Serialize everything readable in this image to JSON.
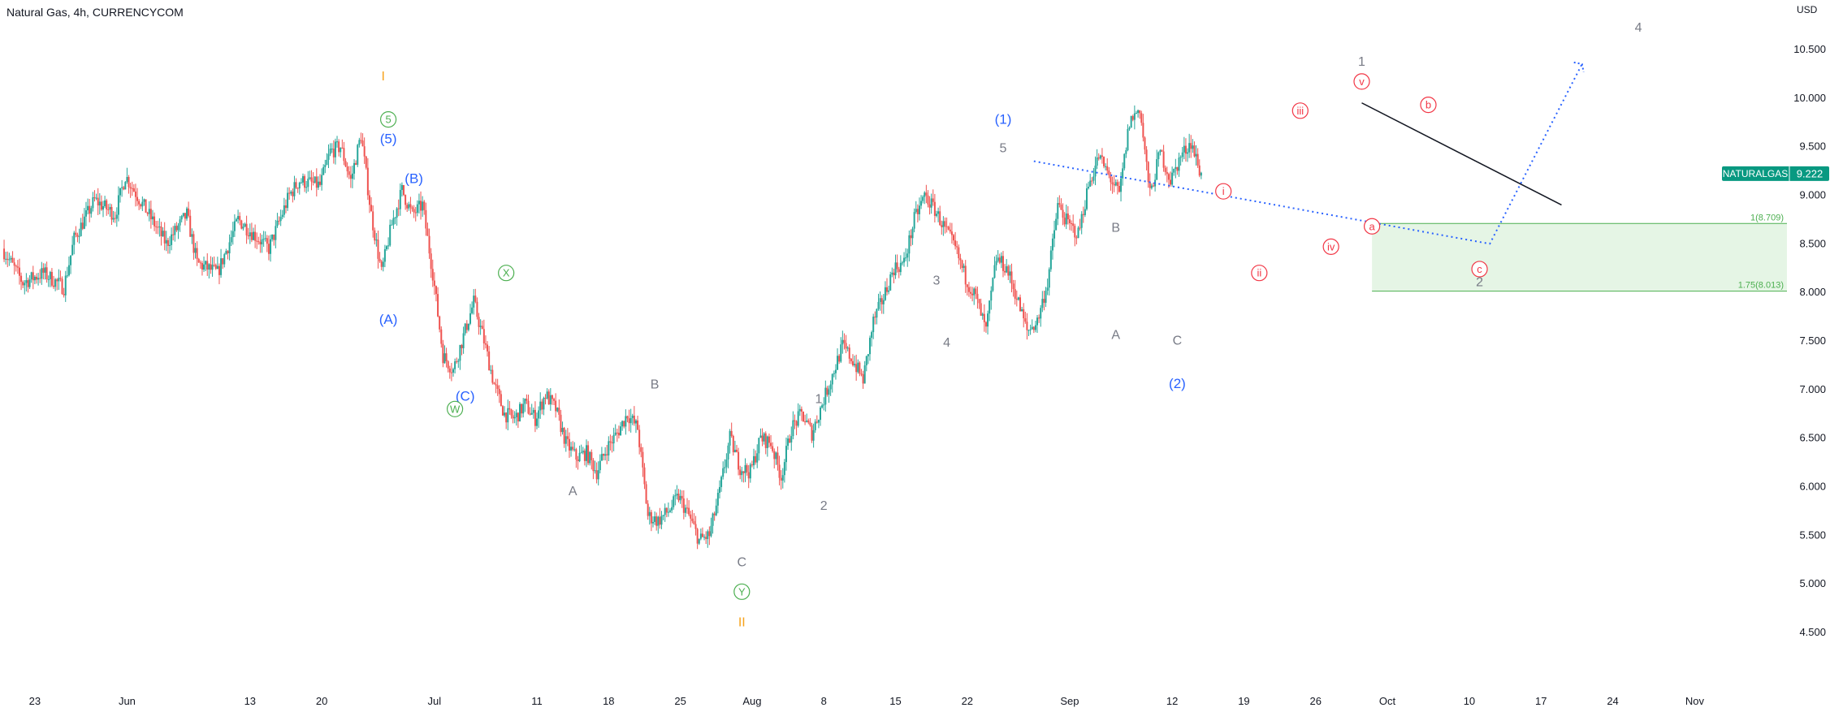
{
  "header": {
    "title": "Natural Gas, 4h, CURRENCYCOM"
  },
  "colors": {
    "up": "#26a69a",
    "down": "#ef5350",
    "blue": "#2962ff",
    "orange": "#f7a21b",
    "green": "#4caf50",
    "red": "#f23645",
    "gray": "#787b86",
    "zone_fill": "#e5f5e5",
    "zone_line": "#4caf50",
    "price_tag": "#089981"
  },
  "chart_data": {
    "type": "candlestick",
    "symbol": "NATURALGAS",
    "last_price": "9.222",
    "currency": "USD",
    "y_range": [
      4.2,
      10.8
    ],
    "y_ticks": [
      "10.500",
      "10.000",
      "9.500",
      "9.000",
      "8.500",
      "8.000",
      "7.500",
      "7.000",
      "6.500",
      "6.000",
      "5.500",
      "5.000",
      "4.500"
    ],
    "x_ticks": [
      "23",
      "Jun",
      "13",
      "20",
      "Jul",
      "11",
      "18",
      "25",
      "Aug",
      "8",
      "15",
      "22",
      "Sep",
      "12",
      "19",
      "26",
      "Oct",
      "10",
      "17",
      "24",
      "Nov"
    ],
    "x_tick_days": [
      -8,
      1,
      13,
      20,
      31,
      41,
      48,
      55,
      62,
      69,
      76,
      83,
      93,
      103,
      110,
      117,
      124,
      132,
      139,
      146,
      154
    ],
    "x_range_days": [
      -11.4,
      163
    ],
    "last_day": 89.5,
    "path": [
      [
        -11,
        8.45
      ],
      [
        -9,
        8.1
      ],
      [
        -7,
        8.2
      ],
      [
        -5,
        8.05
      ],
      [
        -4,
        8.55
      ],
      [
        -2,
        8.95
      ],
      [
        0,
        8.8
      ],
      [
        1,
        9.2
      ],
      [
        3,
        8.85
      ],
      [
        5,
        8.5
      ],
      [
        7,
        8.8
      ],
      [
        8,
        8.3
      ],
      [
        10,
        8.2
      ],
      [
        12,
        8.75
      ],
      [
        14,
        8.55
      ],
      [
        15,
        8.45
      ],
      [
        17,
        9.0
      ],
      [
        18,
        9.15
      ],
      [
        20,
        9.1
      ],
      [
        21,
        9.45
      ],
      [
        22,
        9.5
      ],
      [
        23,
        9.15
      ],
      [
        24,
        9.62
      ],
      [
        25,
        8.8
      ],
      [
        26,
        8.2
      ],
      [
        27,
        8.7
      ],
      [
        28,
        9.05
      ],
      [
        29,
        8.8
      ],
      [
        30,
        8.9
      ],
      [
        31,
        8.2
      ],
      [
        32,
        7.35
      ],
      [
        33,
        7.2
      ],
      [
        34,
        7.55
      ],
      [
        35,
        7.9
      ],
      [
        36,
        7.5
      ],
      [
        37,
        7.05
      ],
      [
        38,
        6.75
      ],
      [
        39,
        6.7
      ],
      [
        40,
        6.85
      ],
      [
        41,
        6.7
      ],
      [
        42,
        6.95
      ],
      [
        43,
        6.8
      ],
      [
        44,
        6.45
      ],
      [
        45,
        6.3
      ],
      [
        46,
        6.35
      ],
      [
        47,
        6.15
      ],
      [
        48,
        6.4
      ],
      [
        49,
        6.55
      ],
      [
        50,
        6.75
      ],
      [
        51,
        6.6
      ],
      [
        52,
        5.7
      ],
      [
        53,
        5.65
      ],
      [
        54,
        5.75
      ],
      [
        55,
        5.9
      ],
      [
        56,
        5.7
      ],
      [
        57,
        5.45
      ],
      [
        58,
        5.5
      ],
      [
        59,
        5.95
      ],
      [
        60,
        6.5
      ],
      [
        61,
        6.2
      ],
      [
        62,
        6.15
      ],
      [
        63,
        6.5
      ],
      [
        64,
        6.45
      ],
      [
        65,
        6.1
      ],
      [
        66,
        6.6
      ],
      [
        67,
        6.75
      ],
      [
        68,
        6.55
      ],
      [
        69,
        6.85
      ],
      [
        70,
        7.15
      ],
      [
        71,
        7.45
      ],
      [
        72,
        7.3
      ],
      [
        73,
        7.1
      ],
      [
        74,
        7.7
      ],
      [
        75,
        7.95
      ],
      [
        76,
        8.25
      ],
      [
        77,
        8.3
      ],
      [
        78,
        8.75
      ],
      [
        79,
        9.0
      ],
      [
        80,
        8.85
      ],
      [
        81,
        8.65
      ],
      [
        82,
        8.45
      ],
      [
        83,
        8.15
      ],
      [
        84,
        7.95
      ],
      [
        85,
        7.6
      ],
      [
        86,
        8.35
      ],
      [
        87,
        8.25
      ],
      [
        88,
        7.95
      ],
      [
        89,
        7.6
      ],
      [
        90,
        7.7
      ],
      [
        91,
        8.1
      ],
      [
        92,
        8.9
      ],
      [
        93,
        8.7
      ],
      [
        94,
        8.6
      ],
      [
        95,
        9.1
      ],
      [
        96,
        9.4
      ],
      [
        97,
        9.2
      ],
      [
        98,
        9.0
      ],
      [
        99,
        9.75
      ],
      [
        100,
        9.9
      ],
      [
        101,
        9.0
      ],
      [
        102,
        9.45
      ],
      [
        103,
        9.15
      ],
      [
        104,
        9.4
      ],
      [
        105,
        9.55
      ],
      [
        106,
        9.2
      ]
    ],
    "wave_labels": [
      {
        "t": "I",
        "d": 26,
        "p": 10.22,
        "c": "orange",
        "s": "plain"
      },
      {
        "t": "5",
        "d": 26.5,
        "p": 9.78,
        "c": "green",
        "s": "circle"
      },
      {
        "t": "(5)",
        "d": 26.5,
        "p": 9.58,
        "c": "blue",
        "s": "plain"
      },
      {
        "t": "(B)",
        "d": 29,
        "p": 9.17,
        "c": "blue",
        "s": "plain"
      },
      {
        "t": "(A)",
        "d": 26.5,
        "p": 7.72,
        "c": "blue",
        "s": "plain"
      },
      {
        "t": "X",
        "d": 38,
        "p": 8.2,
        "c": "green",
        "s": "circle"
      },
      {
        "t": "(C)",
        "d": 34,
        "p": 6.93,
        "c": "blue",
        "s": "plain"
      },
      {
        "t": "W",
        "d": 33,
        "p": 6.8,
        "c": "green",
        "s": "circle"
      },
      {
        "t": "B",
        "d": 52.5,
        "p": 7.05,
        "c": "gray",
        "s": "plain"
      },
      {
        "t": "A",
        "d": 44.5,
        "p": 5.95,
        "c": "gray",
        "s": "plain"
      },
      {
        "t": "C",
        "d": 61,
        "p": 5.22,
        "c": "gray",
        "s": "plain"
      },
      {
        "t": "Y",
        "d": 61,
        "p": 4.92,
        "c": "green",
        "s": "circle"
      },
      {
        "t": "II",
        "d": 61,
        "p": 4.6,
        "c": "orange",
        "s": "plain"
      },
      {
        "t": "1",
        "d": 68.5,
        "p": 6.9,
        "c": "gray",
        "s": "plain"
      },
      {
        "t": "2",
        "d": 69,
        "p": 5.8,
        "c": "gray",
        "s": "plain"
      },
      {
        "t": "3",
        "d": 80,
        "p": 8.12,
        "c": "gray",
        "s": "plain"
      },
      {
        "t": "4",
        "d": 81,
        "p": 7.48,
        "c": "gray",
        "s": "plain"
      },
      {
        "t": "(1)",
        "d": 86.5,
        "p": 9.78,
        "c": "blue",
        "s": "plain"
      },
      {
        "t": "5",
        "d": 86.5,
        "p": 9.48,
        "c": "gray",
        "s": "plain"
      },
      {
        "t": "B",
        "d": 97.5,
        "p": 8.66,
        "c": "gray",
        "s": "plain"
      },
      {
        "t": "A",
        "d": 97.5,
        "p": 7.56,
        "c": "gray",
        "s": "plain"
      },
      {
        "t": "C",
        "d": 103.5,
        "p": 7.5,
        "c": "gray",
        "s": "plain"
      },
      {
        "t": "(2)",
        "d": 103.5,
        "p": 7.06,
        "c": "blue",
        "s": "plain"
      },
      {
        "t": "i",
        "d": 108,
        "p": 9.04,
        "c": "red",
        "s": "circle"
      },
      {
        "t": "ii",
        "d": 111.5,
        "p": 8.2,
        "c": "red",
        "s": "circle"
      },
      {
        "t": "iii",
        "d": 115.5,
        "p": 9.87,
        "c": "red",
        "s": "circle"
      },
      {
        "t": "iv",
        "d": 118.5,
        "p": 8.47,
        "c": "red",
        "s": "circle"
      },
      {
        "t": "1",
        "d": 121.5,
        "p": 10.37,
        "c": "gray",
        "s": "plain"
      },
      {
        "t": "v",
        "d": 121.5,
        "p": 10.17,
        "c": "red",
        "s": "circle"
      },
      {
        "t": "b",
        "d": 128,
        "p": 9.93,
        "c": "red",
        "s": "circle"
      },
      {
        "t": "a",
        "d": 122.5,
        "p": 8.68,
        "c": "red",
        "s": "circle"
      },
      {
        "t": "c",
        "d": 133,
        "p": 8.24,
        "c": "red",
        "s": "circle"
      },
      {
        "t": "2",
        "d": 133,
        "p": 8.1,
        "c": "gray",
        "s": "plain"
      },
      {
        "t": "4",
        "d": 148.5,
        "p": 10.72,
        "c": "gray",
        "s": "plain"
      }
    ],
    "trendline": [
      [
        121.5,
        9.95
      ],
      [
        141,
        8.9
      ]
    ],
    "projection": [
      [
        89.5,
        9.35
      ],
      [
        134,
        8.5
      ],
      [
        143,
        10.35
      ]
    ],
    "fib_zone": {
      "d_start": 122.5,
      "d_end": 163,
      "top": 8.709,
      "bottom": 8.013,
      "top_label": "1(8.709)",
      "bottom_label": "1.75(8.013)"
    }
  }
}
